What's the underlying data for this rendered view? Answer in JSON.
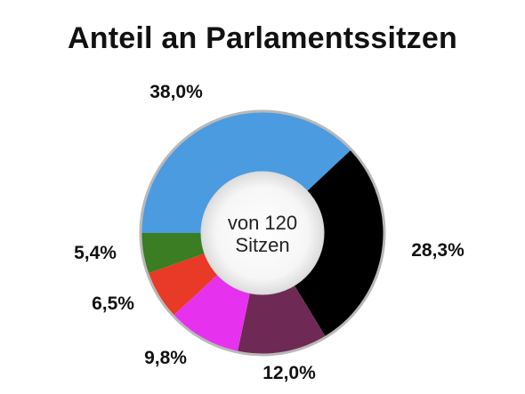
{
  "title": "Anteil an Parlamentssitzen",
  "center_label_line1": "von 120",
  "center_label_line2": "Sitzen",
  "chart_data": {
    "type": "pie",
    "style": "donut",
    "title": "Anteil an Parlamentssitzen",
    "center_text": "von 120 Sitzen",
    "total": 120,
    "start_angle_deg": 180,
    "direction": "clockwise",
    "slices": [
      {
        "label": "38,0%",
        "value": 38.0,
        "color": "#4a9be0"
      },
      {
        "label": "28,3%",
        "value": 28.3,
        "color": "#000000"
      },
      {
        "label": "12,0%",
        "value": 12.0,
        "color": "#6e2a55"
      },
      {
        "label": "9,8%",
        "value": 9.8,
        "color": "#e632ee"
      },
      {
        "label": "6,5%",
        "value": 6.5,
        "color": "#e83a26"
      },
      {
        "label": "5,4%",
        "value": 5.4,
        "color": "#3a7d22"
      }
    ]
  }
}
